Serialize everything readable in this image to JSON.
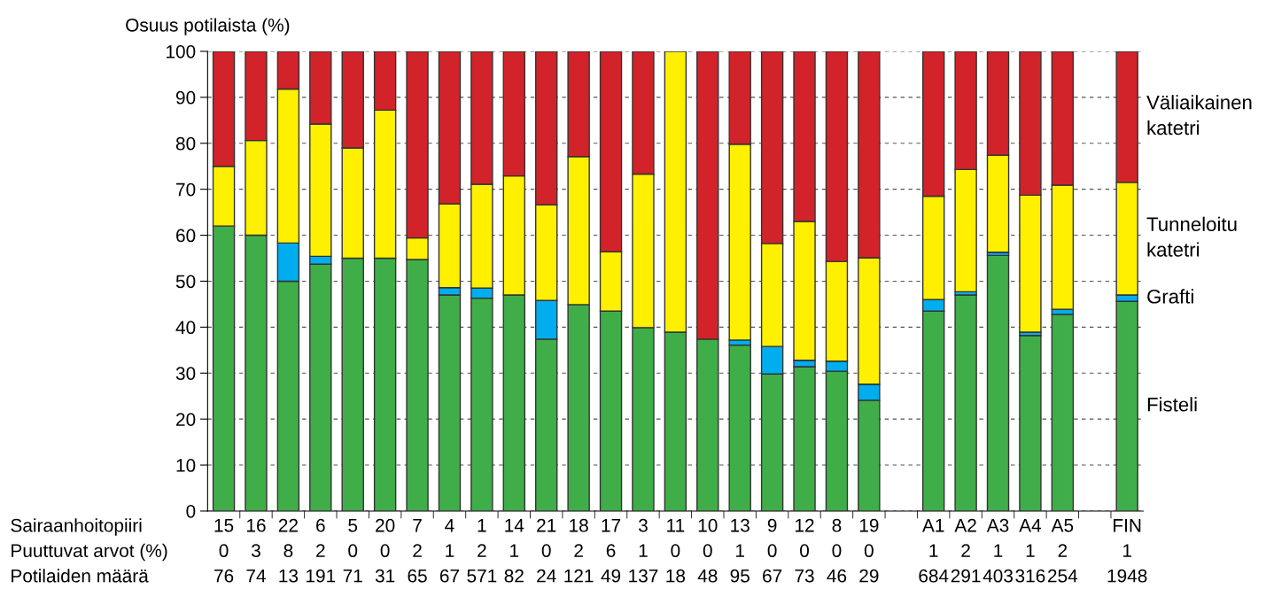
{
  "chart_data": {
    "type": "bar",
    "stacked": true,
    "ylabel": "Osuus potilaista (%)",
    "categories": [
      "15\n0\n76",
      "16\n3\n74",
      "22\n8\n13",
      "6\n2\n191",
      "5\n0\n71",
      "20\n0\n31",
      "7\n2\n65",
      "4\n1\n67",
      "1\n2\n571",
      "14\n1\n82",
      "21\n0\n24",
      "18\n2\n121",
      "17\n6\n49",
      "3\n1\n137",
      "11\n0\n18",
      "10\n0\n48",
      "13\n1\n95",
      "9\n0\n67",
      "12\n0\n73",
      "8\n0\n46",
      "19\n0\n29",
      null,
      "A1\n1\n684",
      "A2\n2\n291",
      "A3\n1\n403",
      "A4\n1\n316",
      "A5\n2\n254",
      null,
      "FIN\n1\n1948"
    ],
    "series": [
      {
        "name": "Fisteli",
        "color": "#3fae49",
        "values": [
          62,
          60,
          50,
          53.7,
          55,
          55,
          54.7,
          47,
          46.3,
          47,
          37.4,
          44.9,
          43.5,
          39.9,
          38.9,
          37.4,
          36.1,
          29.8,
          31.4,
          30.4,
          24.1,
          null,
          43.5,
          47.0,
          55.6,
          38.2,
          42.8,
          null,
          45.6
        ]
      },
      {
        "name": "Grafti",
        "color": "#00aeef",
        "values": [
          null,
          null,
          8.3,
          1.7,
          null,
          null,
          null,
          1.6,
          2.2,
          null,
          8.4,
          null,
          null,
          null,
          null,
          null,
          1.1,
          6.0,
          1.4,
          2.2,
          3.5,
          null,
          2.5,
          0.7,
          0.7,
          0.7,
          1.1,
          null,
          1.4
        ]
      },
      {
        "name": "Tunneloitu katetri",
        "color": "#fff000",
        "values": [
          13,
          20.6,
          33.5,
          28.8,
          24,
          32.2,
          4.7,
          18.2,
          22.6,
          25.9,
          20.8,
          32.2,
          12.9,
          33.4,
          61.1,
          null,
          42.6,
          22.4,
          30.2,
          21.7,
          27.5,
          null,
          22.5,
          26.6,
          21.1,
          29.8,
          27.0,
          null,
          24.5
        ]
      },
      {
        "name": "Väliaikainen katetri",
        "color": "#d2232a",
        "values": [
          25,
          19.4,
          8.2,
          15.8,
          21,
          12.8,
          40.6,
          33.2,
          28.9,
          27.1,
          33.4,
          22.9,
          43.6,
          26.7,
          null,
          62.6,
          20.2,
          41.8,
          37.0,
          45.7,
          44.9,
          null,
          31.5,
          25.7,
          22.6,
          31.3,
          29.1,
          null,
          28.5
        ]
      }
    ],
    "ylim": [
      0,
      100
    ],
    "yticks": [
      0,
      10,
      20,
      30,
      40,
      50,
      60,
      70,
      80,
      90,
      100
    ],
    "grid": "y",
    "legend": "right",
    "annotations": [
      "Sairaanhoitopiiri",
      "Puuttuvat arvot (%)",
      "Potilaiden määrä"
    ]
  }
}
